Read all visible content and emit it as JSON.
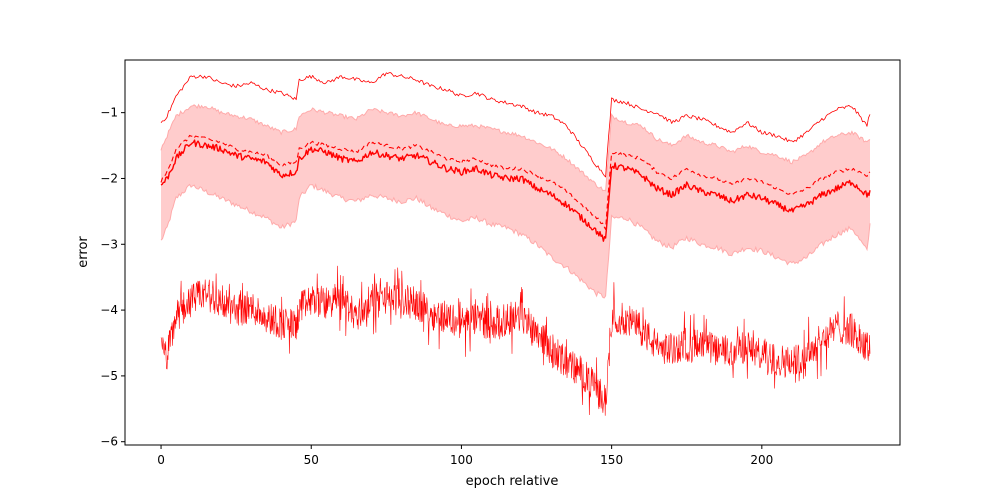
{
  "chart_data": {
    "type": "line",
    "title": "",
    "xlabel": "epoch relative",
    "ylabel": "error",
    "xlim": [
      -12,
      246
    ],
    "ylim": [
      -6.05,
      -0.2
    ],
    "xticks": [
      0,
      50,
      100,
      150,
      200
    ],
    "yticks": [
      -6,
      -5,
      -4,
      -3,
      -2,
      -1
    ],
    "xtick_labels": [
      "0",
      "50",
      "100",
      "150",
      "200"
    ],
    "ytick_labels": [
      "−6",
      "−5",
      "−4",
      "−3",
      "−2",
      "−1"
    ],
    "grid": false,
    "legend": "none",
    "color": "#ff0000",
    "band_color": "#ffcccc",
    "band_edge_color": "#ffaaaa",
    "x": [
      0,
      2,
      5,
      10,
      15,
      20,
      25,
      30,
      35,
      40,
      45,
      46,
      50,
      55,
      60,
      65,
      70,
      75,
      80,
      85,
      90,
      95,
      100,
      105,
      110,
      115,
      120,
      125,
      130,
      135,
      140,
      145,
      148,
      150,
      155,
      160,
      165,
      170,
      175,
      180,
      185,
      190,
      195,
      200,
      205,
      210,
      215,
      220,
      225,
      230,
      235,
      236
    ],
    "series": [
      {
        "values": [
          -1.15,
          -1.05,
          -0.75,
          -0.45,
          -0.45,
          -0.55,
          -0.6,
          -0.55,
          -0.65,
          -0.7,
          -0.8,
          -0.5,
          -0.45,
          -0.55,
          -0.45,
          -0.5,
          -0.55,
          -0.4,
          -0.45,
          -0.5,
          -0.6,
          -0.65,
          -0.75,
          -0.7,
          -0.8,
          -0.85,
          -0.9,
          -1.0,
          -1.05,
          -1.2,
          -1.5,
          -1.8,
          -1.95,
          -0.8,
          -0.85,
          -0.95,
          -1.0,
          -1.15,
          -1.05,
          -1.1,
          -1.2,
          -1.3,
          -1.15,
          -1.3,
          -1.35,
          -1.45,
          -1.3,
          -1.1,
          -0.95,
          -0.9,
          -1.2,
          -1.0
        ],
        "style": "dotted-thin"
      },
      {
        "values": [
          -2.05,
          -1.9,
          -1.55,
          -1.35,
          -1.4,
          -1.45,
          -1.55,
          -1.6,
          -1.65,
          -1.8,
          -1.75,
          -1.55,
          -1.45,
          -1.5,
          -1.55,
          -1.6,
          -1.45,
          -1.5,
          -1.55,
          -1.5,
          -1.6,
          -1.7,
          -1.75,
          -1.7,
          -1.8,
          -1.85,
          -1.85,
          -1.95,
          -2.05,
          -2.2,
          -2.4,
          -2.6,
          -2.75,
          -1.6,
          -1.65,
          -1.7,
          -1.9,
          -2.0,
          -1.85,
          -1.95,
          -2.0,
          -2.1,
          -2.0,
          -2.05,
          -2.15,
          -2.25,
          -2.15,
          -2.0,
          -1.9,
          -1.85,
          -1.95,
          -1.9
        ],
        "style": "dashed"
      },
      {
        "values": [
          -2.1,
          -2.0,
          -1.7,
          -1.45,
          -1.5,
          -1.55,
          -1.65,
          -1.7,
          -1.75,
          -1.95,
          -1.9,
          -1.7,
          -1.55,
          -1.6,
          -1.7,
          -1.75,
          -1.6,
          -1.65,
          -1.7,
          -1.65,
          -1.75,
          -1.85,
          -1.9,
          -1.85,
          -1.95,
          -2.0,
          -2.0,
          -2.15,
          -2.25,
          -2.4,
          -2.6,
          -2.8,
          -2.95,
          -1.8,
          -1.85,
          -1.95,
          -2.15,
          -2.25,
          -2.1,
          -2.2,
          -2.25,
          -2.35,
          -2.25,
          -2.3,
          -2.4,
          -2.5,
          -2.4,
          -2.25,
          -2.15,
          -2.05,
          -2.25,
          -2.2
        ],
        "style": "solid"
      },
      {
        "values": [
          -4.6,
          -4.7,
          -4.1,
          -3.85,
          -3.75,
          -3.9,
          -4.0,
          -3.95,
          -4.1,
          -4.2,
          -4.25,
          -4.0,
          -3.85,
          -3.9,
          -3.8,
          -4.1,
          -3.85,
          -3.8,
          -3.85,
          -3.9,
          -4.05,
          -4.1,
          -4.2,
          -4.15,
          -4.2,
          -4.15,
          -4.1,
          -4.3,
          -4.6,
          -4.8,
          -4.95,
          -5.2,
          -5.4,
          -4.1,
          -4.15,
          -4.3,
          -4.55,
          -4.6,
          -4.5,
          -4.55,
          -4.6,
          -4.65,
          -4.55,
          -4.7,
          -4.75,
          -4.8,
          -4.65,
          -4.45,
          -4.25,
          -4.3,
          -4.6,
          -4.5
        ],
        "style": "noisy-solid"
      }
    ],
    "band": {
      "lower": [
        -2.95,
        -2.75,
        -2.3,
        -2.1,
        -2.2,
        -2.3,
        -2.4,
        -2.5,
        -2.6,
        -2.75,
        -2.65,
        -2.3,
        -2.1,
        -2.2,
        -2.3,
        -2.35,
        -2.25,
        -2.3,
        -2.35,
        -2.3,
        -2.45,
        -2.55,
        -2.65,
        -2.6,
        -2.7,
        -2.75,
        -2.85,
        -3.0,
        -3.2,
        -3.35,
        -3.55,
        -3.75,
        -3.8,
        -2.6,
        -2.6,
        -2.75,
        -2.95,
        -3.05,
        -2.9,
        -3.0,
        -3.05,
        -3.15,
        -3.05,
        -3.1,
        -3.2,
        -3.3,
        -3.2,
        -3.0,
        -2.85,
        -2.75,
        -3.1,
        -2.7
      ],
      "upper": [
        -1.55,
        -1.35,
        -1.05,
        -0.9,
        -0.9,
        -1.0,
        -1.05,
        -1.1,
        -1.2,
        -1.3,
        -1.25,
        -1.05,
        -0.95,
        -1.0,
        -1.05,
        -1.1,
        -0.95,
        -1.0,
        -1.05,
        -1.0,
        -1.1,
        -1.2,
        -1.2,
        -1.2,
        -1.25,
        -1.3,
        -1.35,
        -1.45,
        -1.55,
        -1.7,
        -1.9,
        -2.1,
        -2.2,
        -1.05,
        -1.15,
        -1.2,
        -1.4,
        -1.5,
        -1.35,
        -1.45,
        -1.5,
        -1.6,
        -1.5,
        -1.6,
        -1.65,
        -1.75,
        -1.65,
        -1.45,
        -1.35,
        -1.3,
        -1.45,
        -1.4
      ]
    }
  }
}
